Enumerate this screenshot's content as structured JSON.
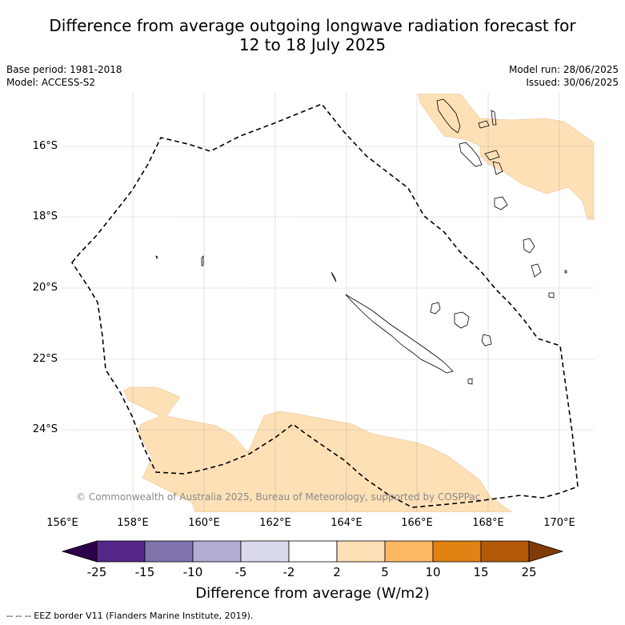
{
  "title_line1": "Difference from average outgoing longwave radiation forecast for",
  "title_line2": "12 to 18 July 2025",
  "base_period": "Base period: 1981-2018",
  "model": "Model: ACCESS-S2",
  "model_run": "Model run: 28/06/2025",
  "issued": "Issued: 30/06/2025",
  "copyright": "© Commonwealth of Australia 2025, Bureau of Meteorology, supported by COSPPac",
  "footer": "--  --  -- EEZ border V11 (Flanders Marine Institute, 2019).",
  "map": {
    "lon_labels": [
      "156°E",
      "158°E",
      "160°E",
      "162°E",
      "164°E",
      "166°E",
      "168°E",
      "170°E"
    ],
    "lat_labels": [
      "16°S",
      "18°S",
      "20°S",
      "22°S",
      "24°S"
    ]
  },
  "colorbar": {
    "title": "Difference from average (W/m2)",
    "labels": [
      "-25",
      "-15",
      "-10",
      "-5",
      "-2",
      "2",
      "5",
      "10",
      "15",
      "25"
    ],
    "colors": [
      "#2d004b",
      "#542788",
      "#8073ac",
      "#b2abd2",
      "#d8daeb",
      "#ffffff",
      "#fee0b6",
      "#fdb863",
      "#e08214",
      "#b35806",
      "#7f3b08"
    ]
  }
}
